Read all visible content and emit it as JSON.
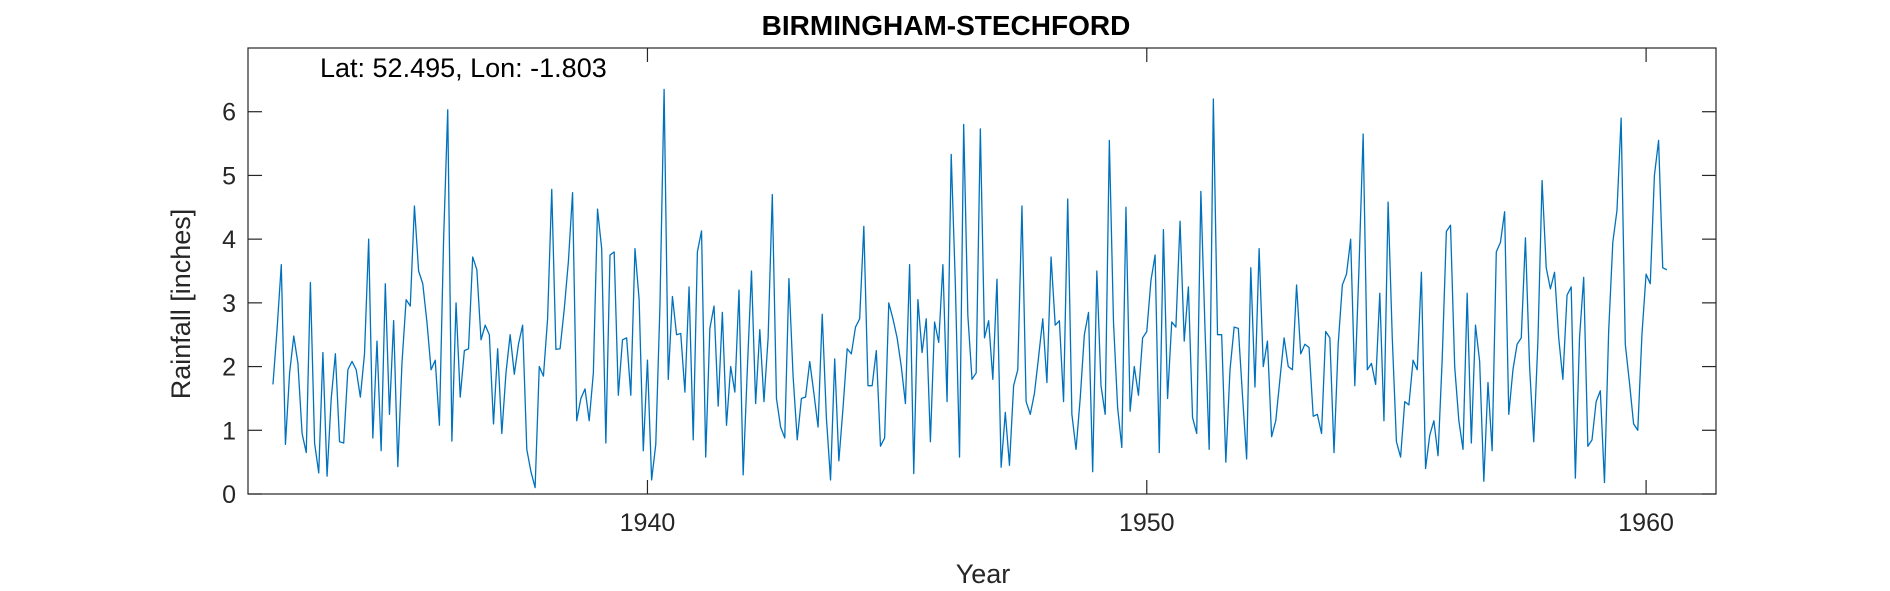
{
  "chart_data": {
    "type": "line",
    "title": "BIRMINGHAM-STECHFORD",
    "annotation": "Lat: 52.495, Lon: -1.803",
    "xlabel": "Year",
    "ylabel": "Rainfall [inches]",
    "xlim": [
      1932.0,
      1961.4
    ],
    "ylim": [
      0,
      7
    ],
    "xticks": [
      1940,
      1950,
      1960
    ],
    "yticks": [
      0,
      1,
      2,
      3,
      4,
      5,
      6
    ],
    "grid": false,
    "series": [
      {
        "color": "#0072BD",
        "start_year": 1932.5,
        "step": 0.0833333,
        "values": [
          1.72,
          2.6,
          3.6,
          0.78,
          1.9,
          2.48,
          2.05,
          0.95,
          0.65,
          3.32,
          0.8,
          0.33,
          2.22,
          0.28,
          1.5,
          2.2,
          0.82,
          0.8,
          1.95,
          2.08,
          1.95,
          1.52,
          2.2,
          4.0,
          0.88,
          2.4,
          0.68,
          3.3,
          1.25,
          2.72,
          0.43,
          2.05,
          3.05,
          2.95,
          4.52,
          3.5,
          3.3,
          2.7,
          1.95,
          2.1,
          1.08,
          3.98,
          6.03,
          0.83,
          3.0,
          1.52,
          2.25,
          2.28,
          3.72,
          3.52,
          2.42,
          2.65,
          2.5,
          1.1,
          2.28,
          0.95,
          1.9,
          2.5,
          1.88,
          2.35,
          2.65,
          0.7,
          0.35,
          0.1,
          2.0,
          1.85,
          2.75,
          4.78,
          2.27,
          2.28,
          2.9,
          3.65,
          4.73,
          1.15,
          1.5,
          1.65,
          1.15,
          1.9,
          4.47,
          3.85,
          0.8,
          3.75,
          3.8,
          1.55,
          2.42,
          2.45,
          1.55,
          3.85,
          3.05,
          0.68,
          2.1,
          0.22,
          0.78,
          2.95,
          6.35,
          1.8,
          3.1,
          2.5,
          2.52,
          1.6,
          3.25,
          0.85,
          3.8,
          4.13,
          0.58,
          2.6,
          2.95,
          1.38,
          2.85,
          1.08,
          2.0,
          1.6,
          3.2,
          0.3,
          1.95,
          3.5,
          1.42,
          2.58,
          1.45,
          2.45,
          4.7,
          1.5,
          1.05,
          0.88,
          3.38,
          1.85,
          0.85,
          1.5,
          1.52,
          2.08,
          1.58,
          1.05,
          2.82,
          1.2,
          0.22,
          2.12,
          0.52,
          1.35,
          2.28,
          2.2,
          2.62,
          2.75,
          4.2,
          1.7,
          1.7,
          2.25,
          0.75,
          0.88,
          3.0,
          2.75,
          2.45,
          2.0,
          1.42,
          3.6,
          0.32,
          3.05,
          2.22,
          2.75,
          0.82,
          2.7,
          2.38,
          3.6,
          1.45,
          5.33,
          3.28,
          0.58,
          5.8,
          2.8,
          1.8,
          1.9,
          5.73,
          2.45,
          2.72,
          1.8,
          3.37,
          0.42,
          1.28,
          0.45,
          1.7,
          1.95,
          4.52,
          1.45,
          1.25,
          1.58,
          2.15,
          2.75,
          1.75,
          3.72,
          2.65,
          2.72,
          1.45,
          4.63,
          1.25,
          0.7,
          1.5,
          2.5,
          2.85,
          0.35,
          3.5,
          1.7,
          1.25,
          5.55,
          2.7,
          1.35,
          0.73,
          4.5,
          1.3,
          2.0,
          1.55,
          2.45,
          2.55,
          3.35,
          3.75,
          0.65,
          4.15,
          1.5,
          2.7,
          2.62,
          4.28,
          2.4,
          3.25,
          1.2,
          0.95,
          4.75,
          2.58,
          0.7,
          6.2,
          2.5,
          2.5,
          0.5,
          1.95,
          2.62,
          2.6,
          1.55,
          0.55,
          3.55,
          1.68,
          3.85,
          2.0,
          2.4,
          0.9,
          1.15,
          1.8,
          2.45,
          2.0,
          1.95,
          3.28,
          2.2,
          2.35,
          2.3,
          1.22,
          1.25,
          0.95,
          2.55,
          2.45,
          0.65,
          2.35,
          3.28,
          3.45,
          4.0,
          1.7,
          3.55,
          5.65,
          1.95,
          2.05,
          1.72,
          3.15,
          1.15,
          4.58,
          2.45,
          0.82,
          0.58,
          1.45,
          1.4,
          2.1,
          1.95,
          3.48,
          0.4,
          0.92,
          1.15,
          0.6,
          2.12,
          4.12,
          4.22,
          2.0,
          1.15,
          0.7,
          3.15,
          0.8,
          2.65,
          2.08,
          0.2,
          1.75,
          0.68,
          3.8,
          3.95,
          4.43,
          1.25,
          1.95,
          2.35,
          2.45,
          4.02,
          2.0,
          0.82,
          2.4,
          4.92,
          3.55,
          3.22,
          3.48,
          2.45,
          1.8,
          3.12,
          3.25,
          0.25,
          2.45,
          3.4,
          0.75,
          0.85,
          1.45,
          1.62,
          0.18,
          2.55,
          3.95,
          4.45,
          5.9,
          2.35,
          1.75,
          1.1,
          1.0,
          2.5,
          3.45,
          3.3,
          5.0,
          5.55,
          3.55,
          3.52
        ]
      }
    ]
  }
}
